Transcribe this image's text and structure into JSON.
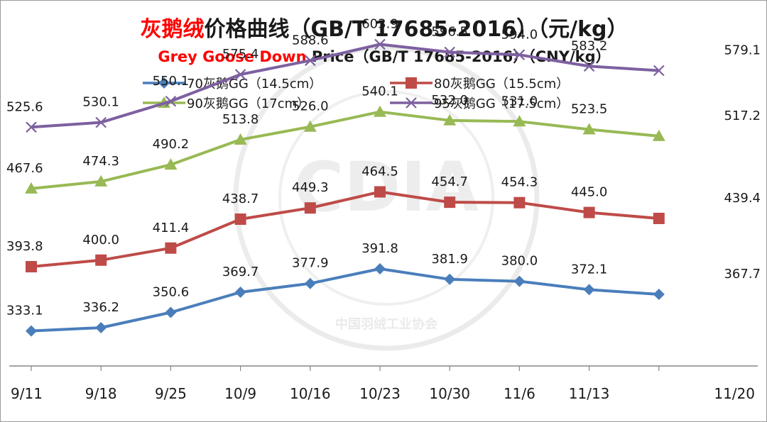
{
  "chart_data": {
    "type": "line",
    "title": {
      "highlight": "灰鹅绒",
      "rest": "价格曲线（GB/T 17685-2016）（元/kg）"
    },
    "subtitle": {
      "highlight": "Grey Goose Down",
      "rest": " Price（GB/T 17685-2016）（CNY/kg）"
    },
    "categories": [
      "9/11",
      "9/18",
      "9/25",
      "10/9",
      "10/16",
      "10/23",
      "10/30",
      "11/6",
      "11/13",
      "11/20"
    ],
    "ylim": [
      300,
      625
    ],
    "grid": false,
    "legend_position": "top",
    "series": [
      {
        "name": "70灰鹅GG（14.5cm）",
        "color": "#4a7ebb",
        "marker": "diamond",
        "values": [
          333.1,
          336.2,
          350.6,
          369.7,
          377.9,
          391.8,
          381.9,
          380.0,
          372.1,
          367.7
        ],
        "labels": [
          "333.1",
          "336.2",
          "350.6",
          "369.7",
          "377.9",
          "391.8",
          "381.9",
          "380.0",
          "372.1",
          "367.7"
        ]
      },
      {
        "name": "80灰鹅GG（15.5cm）",
        "color": "#be4b48",
        "marker": "square",
        "values": [
          393.8,
          400.0,
          411.4,
          438.7,
          449.3,
          464.5,
          454.7,
          454.3,
          445.0,
          439.4
        ],
        "labels": [
          "393.8",
          "400.0",
          "411.4",
          "438.7",
          "449.3",
          "464.5",
          "454.7",
          "454.3",
          "445.0",
          "439.4"
        ]
      },
      {
        "name": "90灰鹅GG（17cm）",
        "color": "#98b954",
        "marker": "triangle",
        "values": [
          467.6,
          474.3,
          490.2,
          513.8,
          526.0,
          540.1,
          532.0,
          531.0,
          523.5,
          517.2
        ],
        "labels": [
          "467.6",
          "474.3",
          "490.2",
          "513.8",
          "526.0",
          "540.1",
          "532.0",
          "531.0",
          "523.5",
          "517.2"
        ]
      },
      {
        "name": "95灰鹅GG（17.5cm）",
        "color": "#7d60a0",
        "marker": "x",
        "values": [
          525.6,
          530.1,
          550.1,
          575.4,
          588.6,
          603.9,
          596.5,
          594.0,
          583.2,
          579.1
        ],
        "labels": [
          "525.6",
          "530.1",
          "550.1",
          "575.4",
          "588.6",
          "603.9",
          "596.5",
          "594.0",
          "583.2",
          "579.1"
        ]
      }
    ],
    "colors": {
      "title_highlight": "#ff0000",
      "title_text": "#1a1a1a",
      "axis": "#868686"
    },
    "watermark": {
      "logo": "CDIA",
      "text": "中国羽绒工业协会"
    }
  }
}
